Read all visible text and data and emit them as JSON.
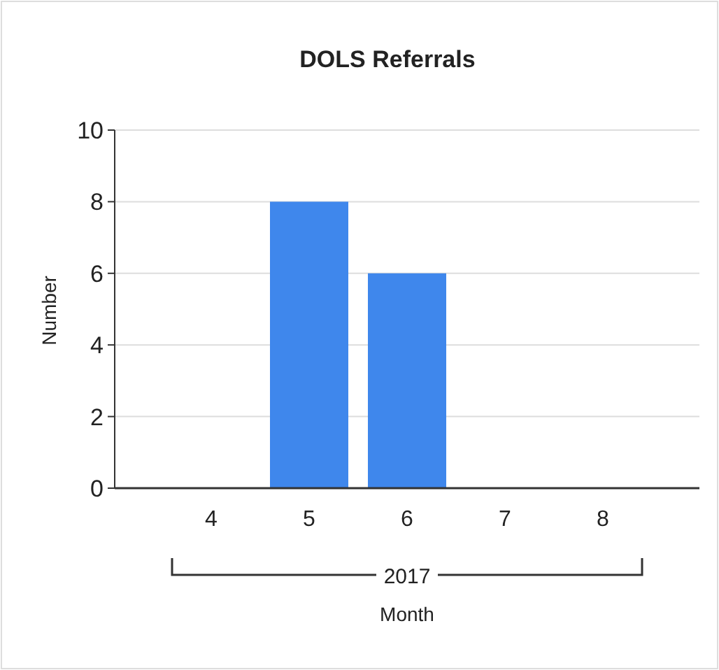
{
  "chart_data": {
    "type": "bar",
    "title": "DOLS Referrals",
    "xlabel": "Month",
    "ylabel": "Number",
    "categories": [
      "4",
      "5",
      "6",
      "7",
      "8"
    ],
    "values": [
      0,
      8,
      6,
      0,
      0
    ],
    "color": "#3f87ec",
    "ylim": [
      0,
      10
    ],
    "yticks": [
      0,
      2,
      4,
      6,
      8,
      10
    ],
    "grid": "y",
    "annotations": [
      "2017"
    ]
  }
}
